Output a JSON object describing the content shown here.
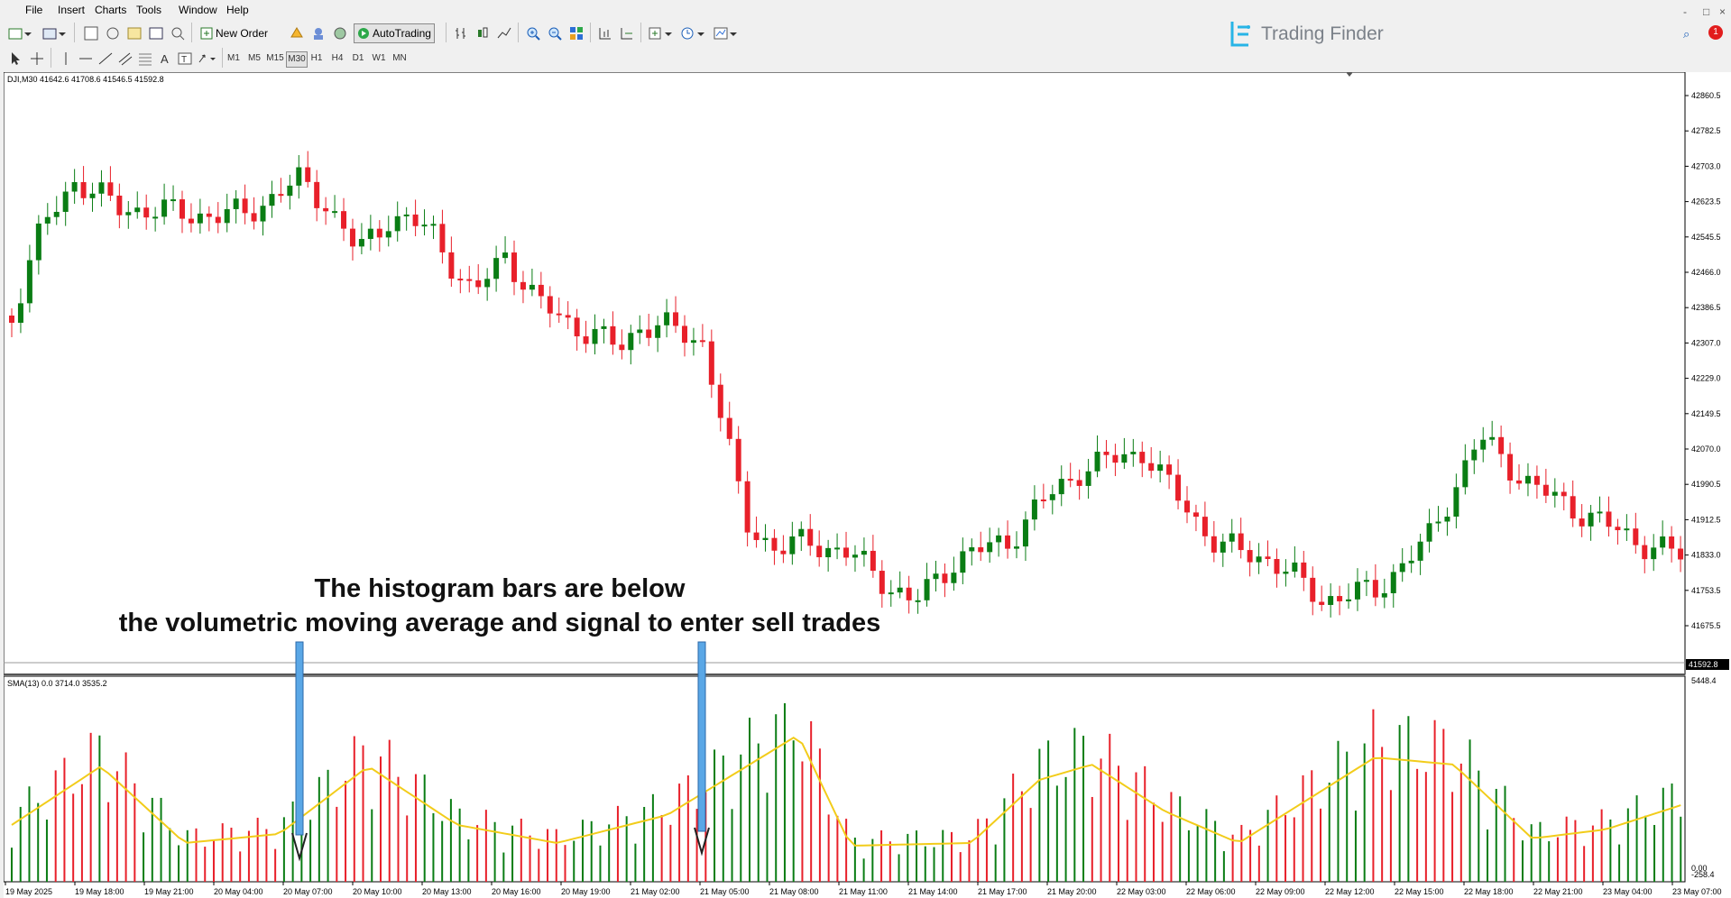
{
  "menu": [
    "File",
    "Insert",
    "Charts",
    "Tools",
    "Window",
    "Help"
  ],
  "window_controls": [
    "-",
    "□",
    "×"
  ],
  "toolbar": {
    "new_order": "New Order",
    "autotrading": "AutoTrading",
    "timeframes": [
      "M1",
      "M5",
      "M15",
      "M30",
      "H1",
      "H4",
      "D1",
      "W1",
      "MN"
    ],
    "active_timeframe": "M30"
  },
  "brand": {
    "name": "Trading Finder",
    "notifications": "1"
  },
  "chart": {
    "symbol_info": "DJI,M30  41642.6 41708.6 41546.5 41592.8",
    "current_price": "41592.8",
    "price_ticks": [
      "42860.5",
      "42782.5",
      "42703.0",
      "42623.5",
      "42545.5",
      "42466.0",
      "42386.5",
      "42307.0",
      "42229.0",
      "42149.5",
      "42070.0",
      "41990.5",
      "41912.5",
      "41833.0",
      "41753.5",
      "41675.5"
    ],
    "indicator_info": "SMA(13) 0.0 3714.0 3535.2",
    "indicator_ticks": [
      "5448.4",
      "0.00",
      "-258.4"
    ],
    "time_labels": [
      "19 May 2025",
      "19 May 18:00",
      "19 May 21:00",
      "20 May 04:00",
      "20 May 07:00",
      "20 May 10:00",
      "20 May 13:00",
      "20 May 16:00",
      "20 May 19:00",
      "21 May 02:00",
      "21 May 05:00",
      "21 May 08:00",
      "21 May 11:00",
      "21 May 14:00",
      "21 May 17:00",
      "21 May 20:00",
      "22 May 03:00",
      "22 May 06:00",
      "22 May 09:00",
      "22 May 12:00",
      "22 May 15:00",
      "22 May 18:00",
      "22 May 21:00",
      "23 May 04:00",
      "23 May 07:00"
    ],
    "colors": {
      "bull": "#0a7d14",
      "bear": "#e8202a",
      "sma": "#f2cc1a",
      "arrow": "#5aa7e6"
    }
  },
  "annotation": {
    "line1": "The histogram bars are below",
    "line2": "the volumetric moving average and signal to enter sell trades"
  }
}
